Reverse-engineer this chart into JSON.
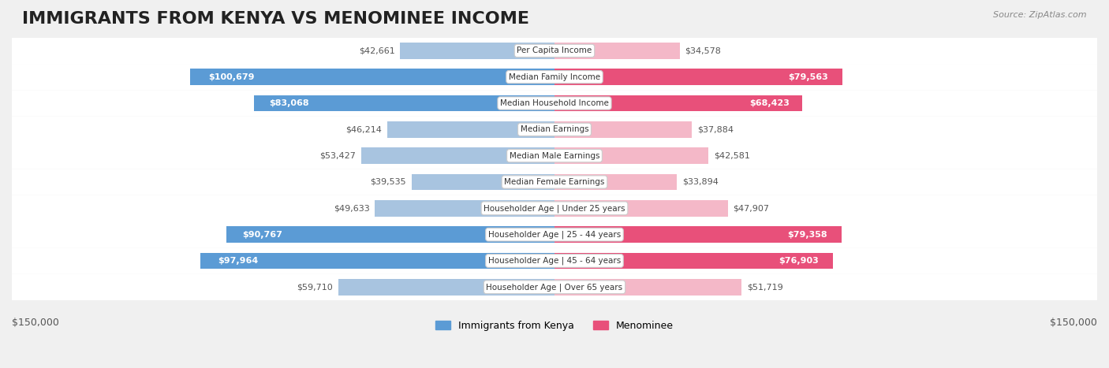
{
  "title": "IMMIGRANTS FROM KENYA VS MENOMINEE INCOME",
  "source": "Source: ZipAtlas.com",
  "categories": [
    "Per Capita Income",
    "Median Family Income",
    "Median Household Income",
    "Median Earnings",
    "Median Male Earnings",
    "Median Female Earnings",
    "Householder Age | Under 25 years",
    "Householder Age | 25 - 44 years",
    "Householder Age | 45 - 64 years",
    "Householder Age | Over 65 years"
  ],
  "kenya_values": [
    42661,
    100679,
    83068,
    46214,
    53427,
    39535,
    49633,
    90767,
    97964,
    59710
  ],
  "menominee_values": [
    34578,
    79563,
    68423,
    37884,
    42581,
    33894,
    47907,
    79358,
    76903,
    51719
  ],
  "kenya_labels": [
    "$42,661",
    "$100,679",
    "$83,068",
    "$46,214",
    "$53,427",
    "$39,535",
    "$49,633",
    "$90,767",
    "$97,964",
    "$59,710"
  ],
  "menominee_labels": [
    "$34,578",
    "$79,563",
    "$68,423",
    "$37,884",
    "$42,581",
    "$33,894",
    "$47,907",
    "$79,358",
    "$76,903",
    "$51,719"
  ],
  "kenya_color_light": "#a8c4e0",
  "kenya_color_dark": "#5b9bd5",
  "menominee_color_light": "#f4b8c8",
  "menominee_color_dark": "#e8507a",
  "max_value": 150000,
  "background_color": "#f0f0f0",
  "row_bg_color": "#ffffff",
  "label_box_color": "#ffffff",
  "title_fontsize": 16,
  "axis_label": "$150,000",
  "legend_kenya": "Immigrants from Kenya",
  "legend_menominee": "Menominee"
}
